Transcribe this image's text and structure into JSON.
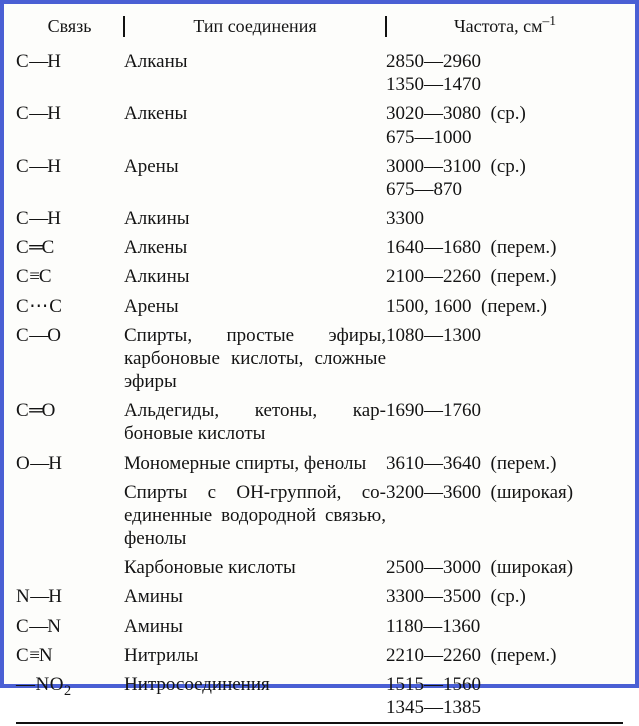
{
  "header": {
    "col1": "Связь",
    "col2": "Тип соединения",
    "col3": "Частота, см",
    "col3_exp": "–1"
  },
  "rows": [
    {
      "bond_html": "C<span class='dash'>—</span>H",
      "type": "Алканы",
      "freq_html": "2850—2960<br>1350—1470"
    },
    {
      "bond_html": "C<span class='dash'>—</span>H",
      "type": "Алкены",
      "freq_html": "3020—3080&nbsp;&nbsp;(ср.)<br>675—1000"
    },
    {
      "bond_html": "C<span class='dash'>—</span>H",
      "type": "Арены",
      "freq_html": "3000—3100&nbsp;&nbsp;(ср.)<br>675—870"
    },
    {
      "bond_html": "C<span class='dash'>—</span>H",
      "type": "Алкины",
      "freq_html": "3300"
    },
    {
      "bond_html": "C<span class='dash'>═</span>C",
      "type": "Алкены",
      "freq_html": "1640—1680&nbsp;&nbsp;(перем.)"
    },
    {
      "bond_html": "C<span class='dash'>≡</span>C",
      "type": "Алкины",
      "freq_html": "2100—2260&nbsp;&nbsp;(перем.)"
    },
    {
      "bond_html": "C<span class='dotb'>⋯</span>C",
      "type": "Арены",
      "freq_html": "1500, 1600&nbsp;&nbsp;(перем.)"
    },
    {
      "bond_html": "C<span class='dash'>—</span>O",
      "type_html": "Спирты, простые эфиры, карбоновые кислоты, сложные эфиры",
      "type_justify": true,
      "freq_html": "1080—1300"
    },
    {
      "bond_html": "C<span class='dash'>═</span>O",
      "type_html": "Альдегиды, кетоны, кар­боновые кислоты",
      "type_justify": true,
      "freq_html": "1690—1760"
    },
    {
      "bond_html": "O<span class='dash'>—</span>H",
      "type_html": "Мономерные спирты, фе­нолы",
      "type_justify": true,
      "freq_html": "3610—3640&nbsp;&nbsp;(перем.)"
    },
    {
      "bond_html": "",
      "type_html": "Спирты с OH-группой, со­единенные водородной связью, фенолы",
      "type_justify": true,
      "freq_html": "3200—3600&nbsp;&nbsp;(широкая)"
    },
    {
      "bond_html": "",
      "type_html": "Карбоновые кислоты",
      "freq_html": "2500—3000&nbsp;&nbsp;(широкая)"
    },
    {
      "bond_html": "N<span class='dash'>—</span>H",
      "type": "Амины",
      "freq_html": "3300—3500&nbsp;&nbsp;(ср.)"
    },
    {
      "bond_html": "C<span class='dash'>—</span>N",
      "type": "Амины",
      "freq_html": "1180—1360"
    },
    {
      "bond_html": "C<span class='dash'>≡</span>N",
      "type": "Нитрилы",
      "freq_html": "2210—2260&nbsp;&nbsp;(перем.)"
    },
    {
      "bond_html": "—NO<span class='sub'>2</span>",
      "type": "Нитросоединения",
      "freq_html": "1515—1560<br>1345—1385"
    }
  ]
}
